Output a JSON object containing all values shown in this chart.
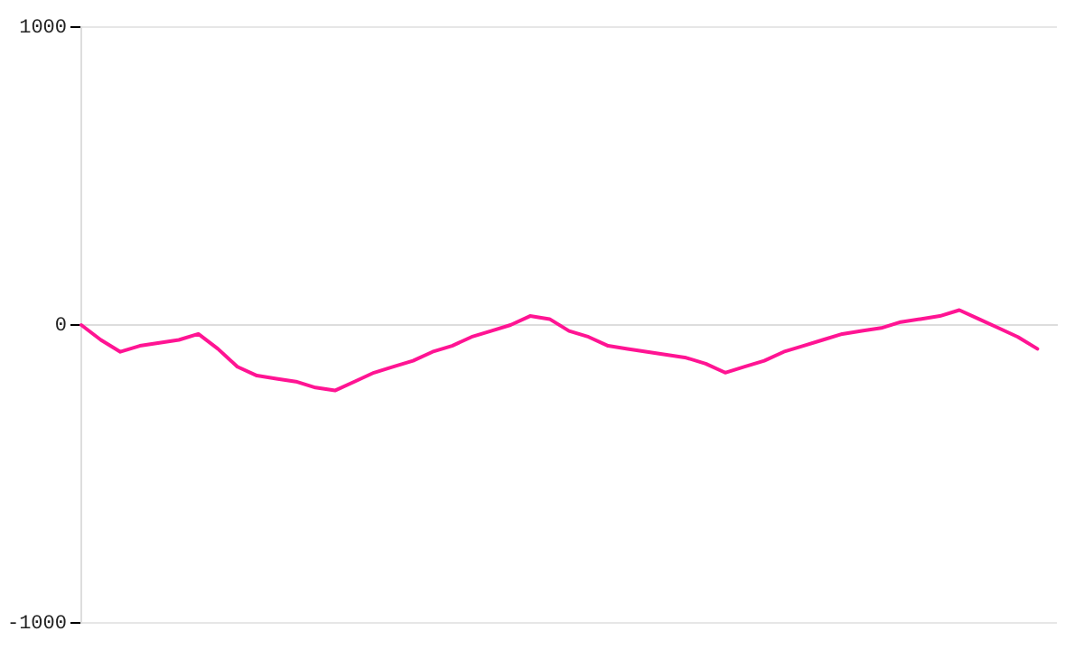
{
  "chart_data": {
    "type": "line",
    "categories": [
      null,
      null,
      null,
      null,
      null,
      null,
      null,
      null,
      null,
      null,
      null,
      null,
      null,
      null,
      null,
      null,
      null,
      null,
      null,
      null,
      null,
      null,
      null,
      null,
      null,
      null,
      null,
      null,
      null,
      null,
      null,
      null,
      null,
      null,
      null,
      null,
      null,
      null,
      null,
      null,
      null,
      null,
      null,
      null,
      null,
      null,
      null,
      null,
      null,
      null,
      null
    ],
    "series": [
      {
        "color": "#ff1493",
        "values": [
          0,
          -50,
          -90,
          -70,
          -60,
          -50,
          -30,
          -80,
          -140,
          -170,
          -180,
          -190,
          -210,
          -220,
          -190,
          -160,
          -140,
          -120,
          -90,
          -70,
          -40,
          -20,
          0,
          30,
          20,
          -20,
          -40,
          -70,
          -80,
          -90,
          -100,
          -110,
          -130,
          -160,
          -140,
          -120,
          -90,
          -70,
          -50,
          -30,
          -20,
          -10,
          10,
          20,
          30,
          50,
          20,
          -10,
          -40,
          -80,
          null
        ]
      }
    ],
    "ylim": [
      -1000,
      1000
    ],
    "yticks": [
      -1000,
      0,
      1000
    ],
    "tick_labels": "y",
    "grid": "y",
    "marker": "none",
    "line_style": "solid",
    "legend": false
  }
}
